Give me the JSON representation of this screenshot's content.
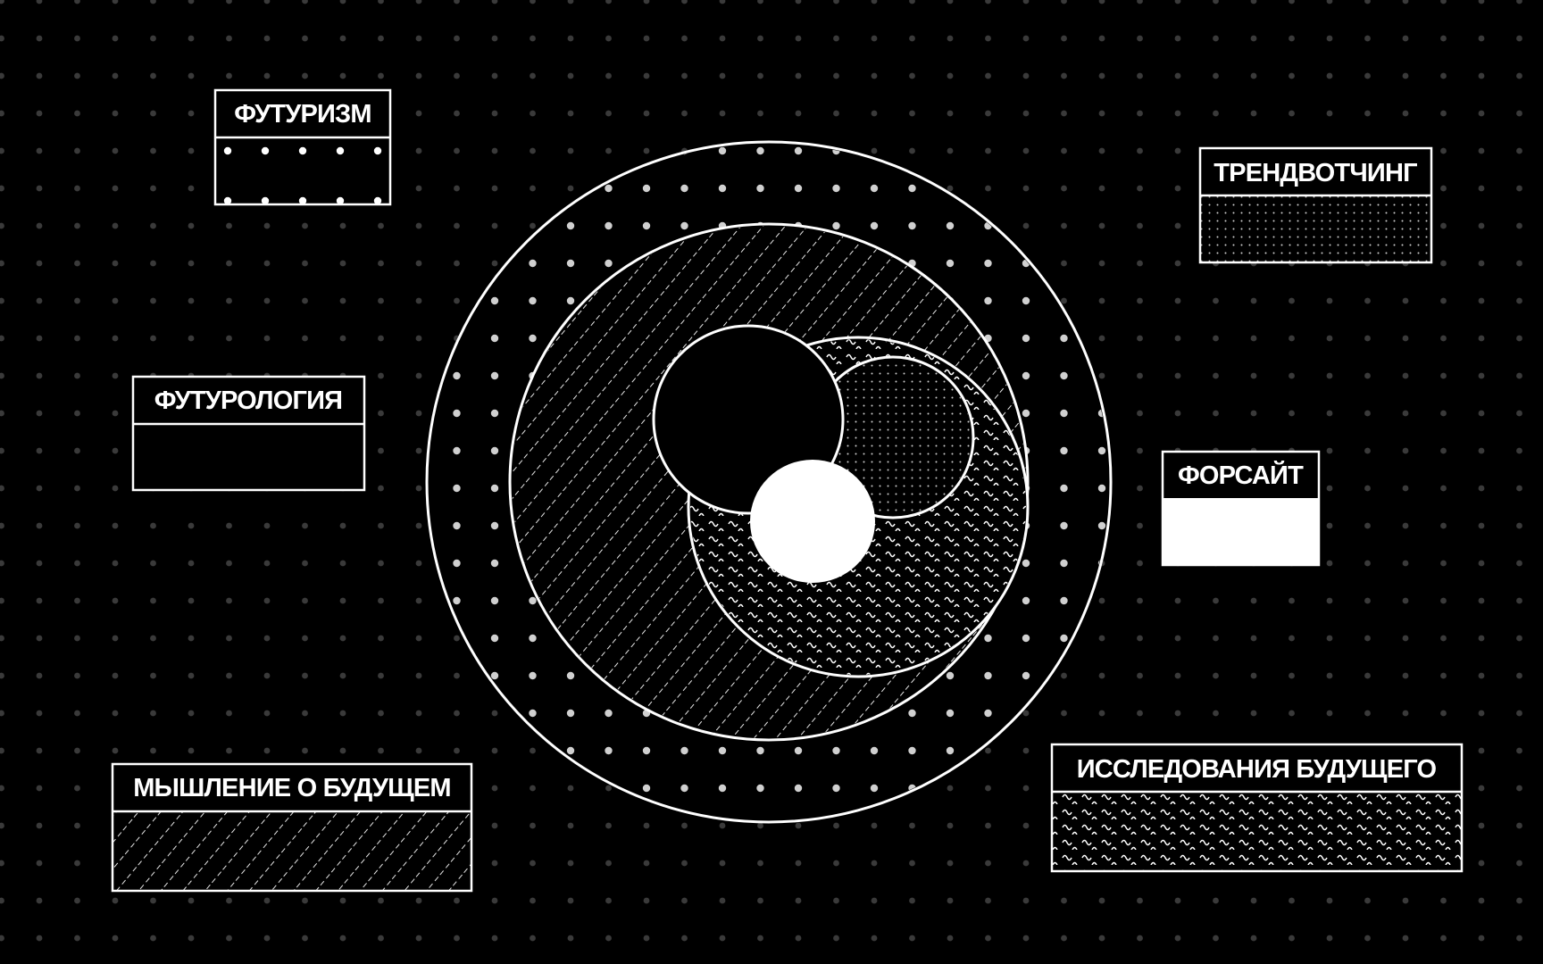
{
  "legend": {
    "futurism": {
      "label": "ФУТУРИЗМ",
      "pattern": "large-dots"
    },
    "trendwatching": {
      "label": "ТРЕНДВОТЧИНГ",
      "pattern": "fine-dots"
    },
    "futurology": {
      "label": "ФУТУРОЛОГИЯ",
      "pattern": "solid-black"
    },
    "foresight": {
      "label": "ФОРСАЙТ",
      "pattern": "solid-white"
    },
    "futures_thinking": {
      "label": "МЫШЛЕНИЕ О БУДУЩЕМ",
      "pattern": "diagonal-dashed"
    },
    "futures_studies": {
      "label": "ИССЛЕДОВАНИЯ БУДУЩЕГО",
      "pattern": "waves"
    }
  },
  "colors": {
    "background": "#000000",
    "foreground": "#ffffff",
    "grid_dot": "#3a3a3a"
  }
}
